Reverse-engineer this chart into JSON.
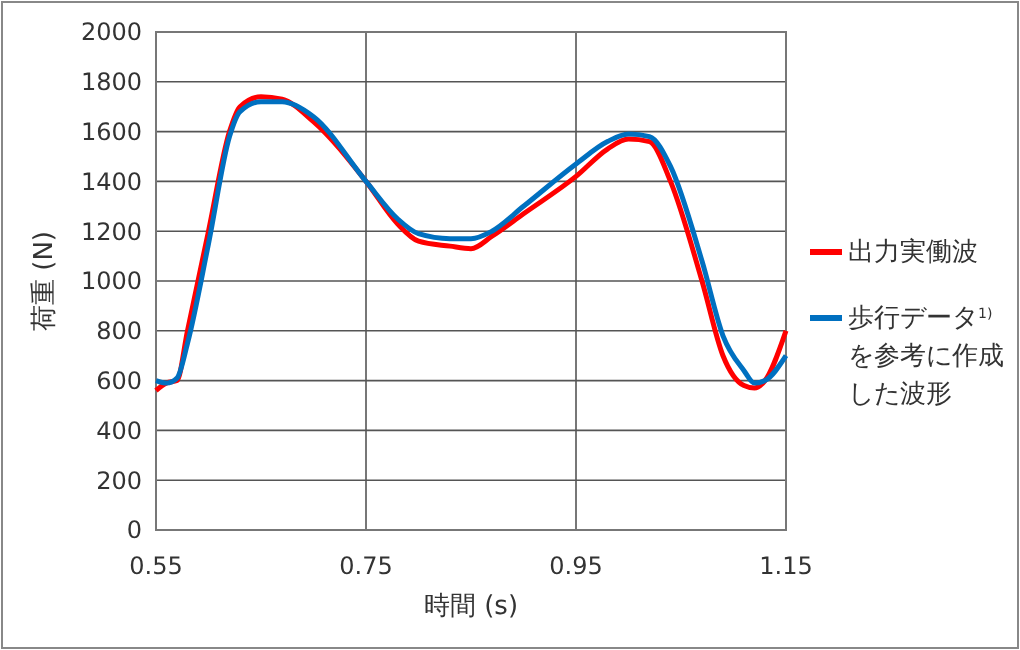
{
  "chart_data": {
    "type": "line",
    "xlabel": "時間 (s)",
    "ylabel": "荷重 (N)",
    "xlim": [
      0.55,
      1.15
    ],
    "xticks": [
      0.55,
      0.75,
      0.95,
      1.15
    ],
    "ylim": [
      0,
      2000
    ],
    "yticks": [
      0,
      200,
      400,
      600,
      800,
      1000,
      1200,
      1400,
      1600,
      1800,
      2000
    ],
    "grid": true,
    "legend": "right",
    "marker": "none",
    "line_style": "solid",
    "x": [
      0.55,
      0.56,
      0.57,
      0.58,
      0.6,
      0.62,
      0.63,
      0.65,
      0.67,
      0.7,
      0.75,
      0.78,
      0.8,
      0.83,
      0.85,
      0.87,
      0.9,
      0.95,
      0.98,
      1.0,
      1.02,
      1.04,
      1.07,
      1.09,
      1.11,
      1.12,
      1.13,
      1.15
    ],
    "series": [
      {
        "name": "出力実働波",
        "color": "#ff0000",
        "values": [
          560,
          590,
          600,
          800,
          1200,
          1600,
          1700,
          1740,
          1730,
          1640,
          1400,
          1230,
          1160,
          1140,
          1130,
          1180,
          1270,
          1420,
          1530,
          1570,
          1560,
          1400,
          1000,
          700,
          580,
          570,
          600,
          800
        ]
      },
      {
        "name": "歩行データ$^{1)}$を参考に作成した波形",
        "color": "#0070c0",
        "values": [
          600,
          590,
          610,
          750,
          1150,
          1580,
          1680,
          1720,
          1720,
          1660,
          1400,
          1250,
          1190,
          1170,
          1170,
          1200,
          1300,
          1470,
          1560,
          1590,
          1580,
          1460,
          1080,
          780,
          640,
          590,
          600,
          700
        ]
      }
    ]
  }
}
